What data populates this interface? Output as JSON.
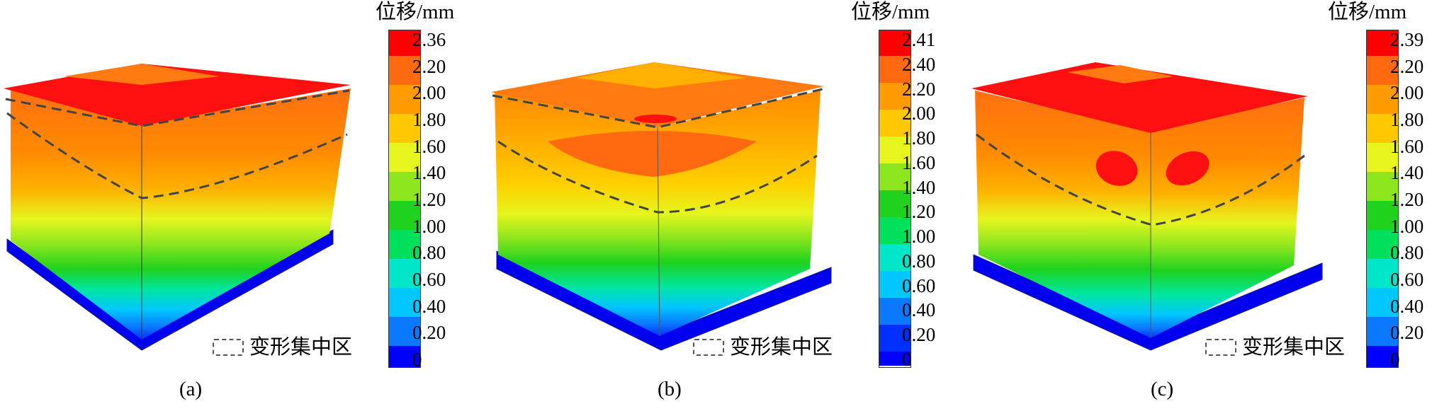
{
  "palette": [
    "#0000ff",
    "#0030ff",
    "#0a78ff",
    "#00c8ff",
    "#00e6c8",
    "#00e05a",
    "#1ed21e",
    "#8ce61e",
    "#e6f51e",
    "#ffc800",
    "#ff9a00",
    "#ff6a10",
    "#ff0000"
  ],
  "panels": [
    {
      "caption": "(a)",
      "colorbar_title": "位移/mm",
      "colorbar_labels": [
        "2.36",
        "2.20",
        "2.00",
        "1.80",
        "1.60",
        "1.40",
        "1.20",
        "1.00",
        "0.80",
        "0.60",
        "0.40",
        "0.20",
        "0"
      ],
      "legend_text": "变形集中区"
    },
    {
      "caption": "(b)",
      "colorbar_title": "位移/mm",
      "colorbar_labels": [
        "2.41",
        "2.40",
        "2.20",
        "2.00",
        "1.80",
        "1.60",
        "1.40",
        "1.20",
        "1.00",
        "0.80",
        "0.60",
        "0.40",
        "0.20",
        "0"
      ],
      "legend_text": "变形集中区"
    },
    {
      "caption": "(c)",
      "colorbar_title": "位移/mm",
      "colorbar_labels": [
        "2.39",
        "2.20",
        "2.00",
        "1.80",
        "1.60",
        "1.40",
        "1.20",
        "1.00",
        "0.80",
        "0.60",
        "0.40",
        "0.20",
        "0"
      ],
      "legend_text": "变形集中区"
    }
  ]
}
